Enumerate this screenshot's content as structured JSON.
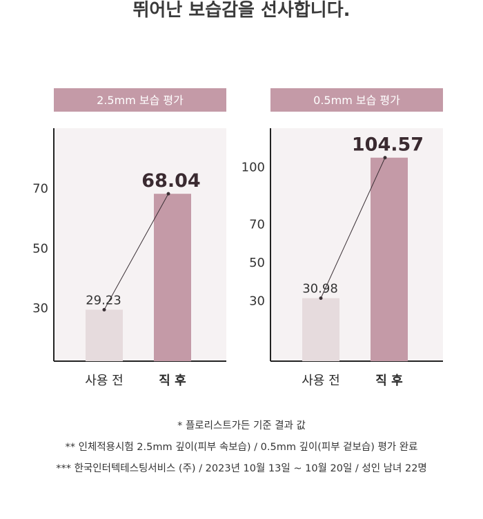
{
  "headline": "뛰어난 보습감을 선사합니다.",
  "chart_data": [
    {
      "type": "bar",
      "title": "2.5mm 보습 평가",
      "categories": [
        "사용 전",
        "직 후"
      ],
      "values": [
        29.23,
        68.04
      ],
      "value_labels": [
        "29.23",
        "68.04"
      ],
      "yticks": [
        30,
        50,
        70
      ],
      "ylim": [
        12,
        90
      ],
      "colors": [
        "#e6dbdd",
        "#c49aa7"
      ],
      "title_bg": "#c49aa7",
      "plot_bg": "#f6f2f3",
      "connector_line": true
    },
    {
      "type": "bar",
      "title": "0.5mm 보습 평가",
      "categories": [
        "사용 전",
        "직 후"
      ],
      "values": [
        30.98,
        104.57
      ],
      "value_labels": [
        "30.98",
        "104.57"
      ],
      "yticks": [
        30,
        50,
        70,
        100
      ],
      "ylim": [
        -2,
        120
      ],
      "colors": [
        "#e6dbdd",
        "#c49aa7"
      ],
      "title_bg": "#c49aa7",
      "plot_bg": "#f6f2f3",
      "connector_line": true
    }
  ],
  "footnotes": [
    "* 플로리스트가든 기준 결과 값",
    "** 인체적용시험 2.5mm 깊이(피부 속보습) / 0.5mm 깊이(피부 겉보습) 평가 완료",
    "*** 한국인터텍테스팅서비스 (주) / 2023년 10월 13일 ~ 10월 20일 / 성인 남녀 22명"
  ]
}
